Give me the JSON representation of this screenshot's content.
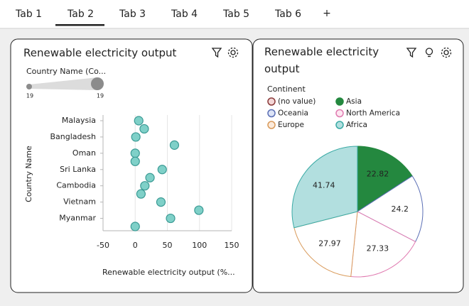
{
  "tabs": [
    "Tab 1",
    "Tab 2",
    "Tab 3",
    "Tab 4",
    "Tab 5",
    "Tab 6"
  ],
  "add_tab": "+",
  "active_tab": 1,
  "chart_data": [
    {
      "type": "scatter",
      "title": "Renewable electricity output",
      "slider": {
        "label": "Country Name (Co...",
        "min": 19,
        "max": 19
      },
      "y_label": "Country Name",
      "x_label": "Renewable electricity output (%...",
      "categories": [
        "Malaysia",
        null,
        "Bangladesh",
        null,
        "Oman",
        null,
        "Sri Lanka",
        null,
        "Cambodia",
        null,
        "Vietnam",
        null,
        "Myanmar",
        null
      ],
      "values": [
        5.5,
        14,
        1,
        61,
        0,
        0,
        42,
        23,
        15,
        9,
        40,
        99,
        55,
        0
      ],
      "xlim": [
        -50,
        150
      ],
      "xticks": [
        -50,
        0,
        50,
        100,
        150
      ],
      "grid": true,
      "color": "#7fd0c8",
      "edge_color": "#3a9a94"
    },
    {
      "type": "pie",
      "title": "Renewable electricity output",
      "legend_title": "Continent",
      "categories": [
        "(no value)",
        "Asia",
        "Oceania",
        "North America",
        "Europe",
        "Africa"
      ],
      "values": [
        null,
        22.82,
        24.2,
        27.33,
        27.97,
        41.74
      ],
      "colors": [
        "#8a3a3a",
        "#24883f",
        "#5b6fb5",
        "#e07ab0",
        "#d99a5a",
        "#3aaaa5"
      ],
      "legend_fills": [
        "#f3d6d6",
        "#24883f",
        "#dde4f6",
        "#fde6f0",
        "#fbeadb",
        "#b2dfdf"
      ],
      "fills": [
        null,
        "#24883f",
        "#ffffff",
        "#ffffff",
        "#ffffff",
        "#b2dfdf"
      ]
    }
  ]
}
